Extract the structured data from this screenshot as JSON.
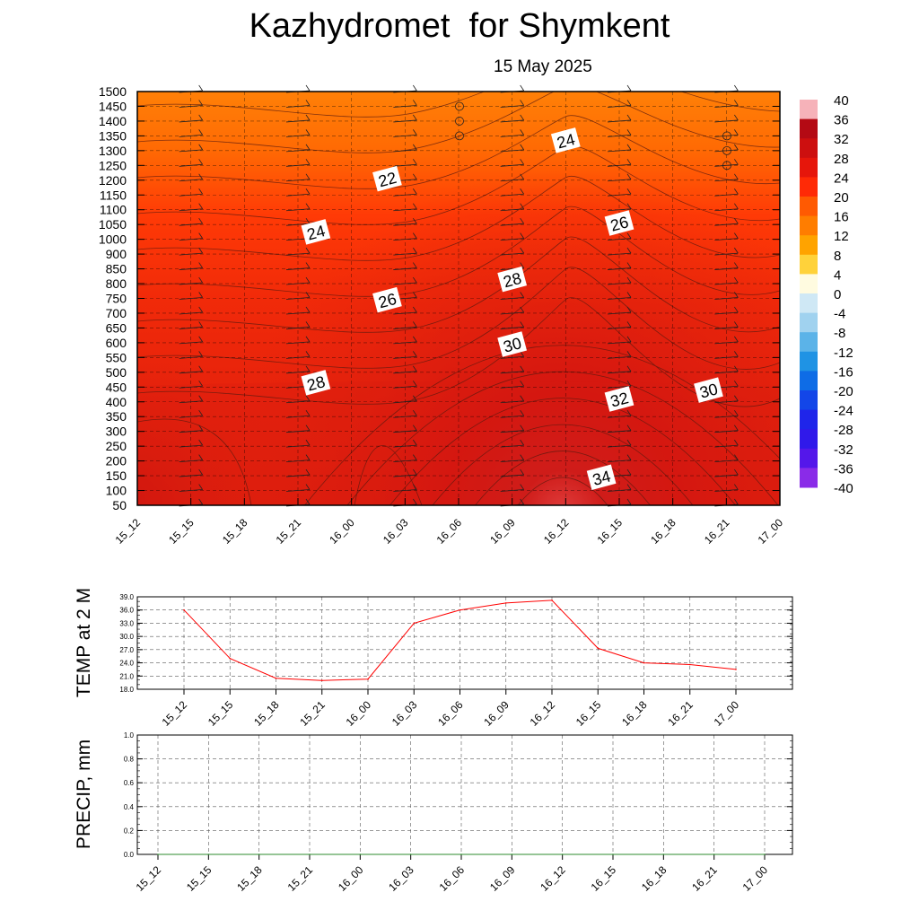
{
  "title": "Kazhydromet  for Shymkent",
  "date": "15 May 2025",
  "chart_data": [
    {
      "type": "heatmap",
      "name": "cross-section",
      "x_ticks": [
        "15_12",
        "15_15",
        "15_18",
        "15_21",
        "16_00",
        "16_03",
        "16_06",
        "16_09",
        "16_12",
        "16_15",
        "16_18",
        "16_21",
        "17_00"
      ],
      "y_ticks": [
        50,
        100,
        150,
        200,
        250,
        300,
        350,
        400,
        450,
        500,
        550,
        600,
        650,
        700,
        750,
        800,
        850,
        900,
        1000,
        1050,
        1100,
        1150,
        1200,
        1250,
        1300,
        1350,
        1400,
        1450,
        1500
      ],
      "colorbar": {
        "labels": [
          "40",
          "36",
          "32",
          "28",
          "24",
          "20",
          "16",
          "12",
          "8",
          "4",
          "0",
          "-4",
          "-8",
          "-12",
          "-16",
          "-20",
          "-24",
          "-28",
          "-32",
          "-36",
          "-40"
        ],
        "colors": [
          "#f6b2b9",
          "#b40a14",
          "#cd0f0f",
          "#e6160b",
          "#ff2a06",
          "#ff5a02",
          "#ff7d00",
          "#ffa300",
          "#ffd23a",
          "#fff28e",
          "#fffbe0",
          "#cfe8f5",
          "#a0d2ef",
          "#5bb3e8",
          "#1f93e4",
          "#0e6ce6",
          "#1346e8",
          "#1f25ea",
          "#3019ea",
          "#5417ea",
          "#8a2be8"
        ]
      },
      "contour_labels": [
        {
          "text": "22",
          "x": "16_02",
          "y": 1205
        },
        {
          "text": "24",
          "x": "15_22",
          "y": 1025
        },
        {
          "text": "24",
          "x": "16_12",
          "y": 1335
        },
        {
          "text": "26",
          "x": "16_02",
          "y": 745
        },
        {
          "text": "26",
          "x": "16_15",
          "y": 1055
        },
        {
          "text": "28",
          "x": "16_09",
          "y": 815
        },
        {
          "text": "28",
          "x": "15_22",
          "y": 465
        },
        {
          "text": "30",
          "x": "16_09",
          "y": 595
        },
        {
          "text": "30",
          "x": "16_20",
          "y": 440
        },
        {
          "text": "32",
          "x": "16_15",
          "y": 410
        },
        {
          "text": "34",
          "x": "16_14",
          "y": 145
        }
      ]
    },
    {
      "type": "line",
      "name": "temperature",
      "ylabel": "TEMP at 2 M",
      "ylim": [
        18,
        39
      ],
      "y_ticks": [
        "18.0",
        "21.0",
        "24.0",
        "27.0",
        "30.0",
        "33.0",
        "36.0",
        "39.0"
      ],
      "x": [
        "15_12",
        "15_15",
        "15_18",
        "15_21",
        "16_00",
        "16_03",
        "16_06",
        "16_09",
        "16_12",
        "16_15",
        "16_18",
        "16_21",
        "17_00"
      ],
      "series": [
        {
          "values": [
            36.0,
            25.0,
            20.5,
            20.0,
            20.3,
            33.0,
            36.0,
            37.6,
            38.2,
            27.3,
            24.0,
            23.6,
            22.5
          ],
          "color": "#ff0000"
        }
      ]
    },
    {
      "type": "line",
      "name": "precipitation",
      "ylabel": "PRECIP, mm",
      "ylim": [
        0,
        1
      ],
      "y_ticks": [
        "0.0",
        "0.2",
        "0.4",
        "0.6",
        "0.8",
        "1.0"
      ],
      "x": [
        "15_12",
        "15_15",
        "15_18",
        "15_21",
        "16_00",
        "16_03",
        "16_06",
        "16_09",
        "16_12",
        "16_15",
        "16_18",
        "16_21",
        "17_00"
      ],
      "series": [
        {
          "values": [
            0,
            0,
            0,
            0,
            0,
            0,
            0,
            0,
            0,
            0,
            0,
            0,
            0
          ],
          "color": "#2e8b2e"
        }
      ]
    }
  ]
}
